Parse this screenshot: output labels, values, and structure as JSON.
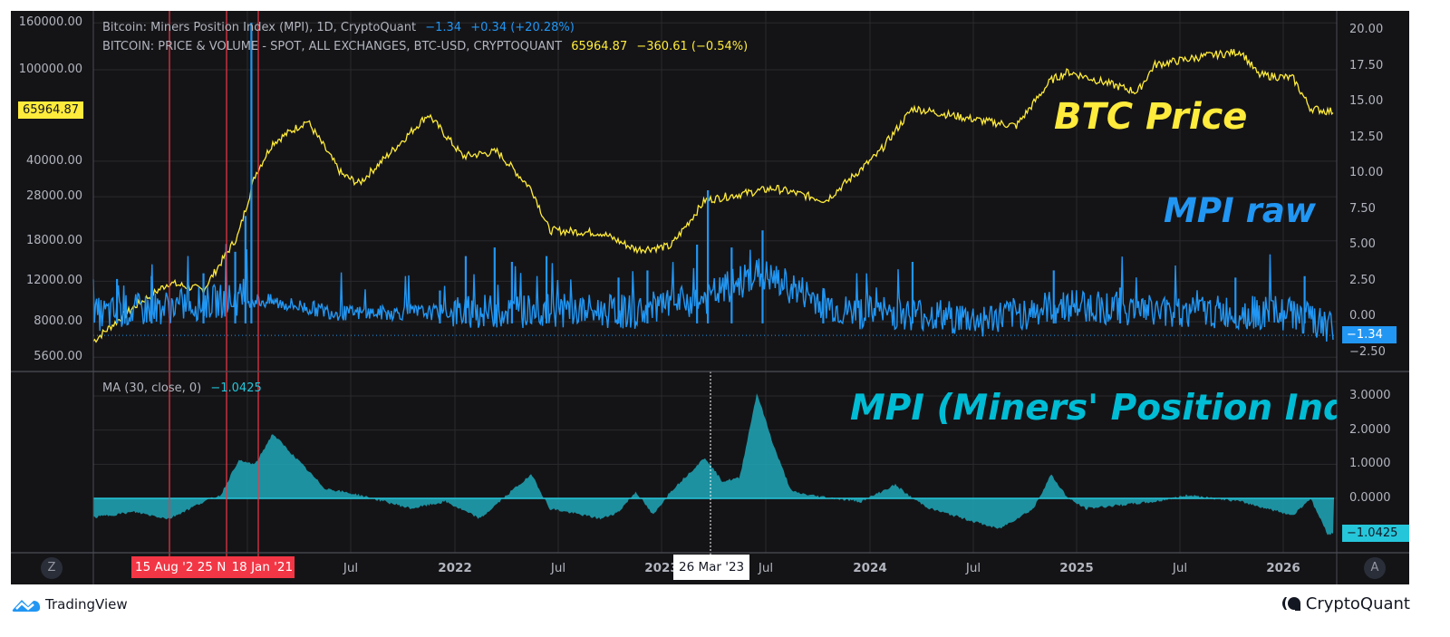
{
  "legend": {
    "mpi": {
      "title": "Bitcoin: Miners Position Index (MPI), 1D, CryptoQuant",
      "value": "−1.34",
      "change": "+0.34 (+20.28%)",
      "color": "#2196f3"
    },
    "price": {
      "title": "BITCOIN: PRICE & VOLUME - SPOT, ALL EXCHANGES, BTC-USD, CRYPTOQUANT",
      "value": "65964.87",
      "change": "−360.61 (−0.54%)",
      "color": "#ffeb3b"
    },
    "ma": {
      "title": "MA (30, close, 0)",
      "value": "−1.0425",
      "color": "#26c6da"
    }
  },
  "annotations": {
    "btc_price": "BTC Price",
    "mpi_raw": "MPI raw",
    "mpi_full": "MPI (Miners' Position Index, ..."
  },
  "left_axis": {
    "ticks": [
      "160000.00",
      "100000.00",
      "40000.00",
      "28000.00",
      "18000.00",
      "12000.00",
      "8000.00",
      "5600.00"
    ],
    "current_price_tag": "65964.87"
  },
  "right_axis_top": {
    "ticks": [
      "20.00",
      "17.50",
      "15.00",
      "12.50",
      "10.00",
      "7.50",
      "5.00",
      "2.50",
      "0.00",
      "−2.50"
    ],
    "current_tag": "−1.34"
  },
  "right_axis_bottom": {
    "ticks": [
      "3.0000",
      "2.0000",
      "1.0000",
      "0.0000"
    ],
    "current_tag": "−1.0425"
  },
  "time_axis": {
    "labels": [
      {
        "text": "Jul",
        "bold": false
      },
      {
        "text": "2022",
        "bold": true
      },
      {
        "text": "Jul",
        "bold": false
      },
      {
        "text": "2023",
        "bold": true
      },
      {
        "text": "Jul",
        "bold": false
      },
      {
        "text": "2024",
        "bold": true
      },
      {
        "text": "Jul",
        "bold": false
      },
      {
        "text": "2025",
        "bold": true
      },
      {
        "text": "Jul",
        "bold": false
      },
      {
        "text": "2026",
        "bold": true
      }
    ],
    "markers": {
      "red": [
        "15 Aug '2",
        "25 N",
        "18 Jan '21"
      ],
      "crosshair": "26 Mar '23"
    }
  },
  "buttons": {
    "zoom_reset": "Z",
    "auto_scale": "A"
  },
  "branding": {
    "left": "TradingView",
    "right": "CryptoQuant"
  },
  "colors": {
    "background": "#141417",
    "grid": "#2a2a2e",
    "price_line": "#ffeb3b",
    "mpi_line": "#2196f3",
    "ma_fill": "#1fa7b8",
    "marker_red": "#f23645"
  },
  "chart_data": [
    {
      "type": "line",
      "title": "Bitcoin: Price & Volume - Spot, All Exchanges, BTC-USD (log scale)",
      "ylabel": "BTC-USD",
      "yscale": "log",
      "ylim": [
        5000,
        170000
      ],
      "x": [
        "2020-03",
        "2020-06",
        "2020-08",
        "2020-10",
        "2020-12",
        "2021-01",
        "2021-02",
        "2021-04",
        "2021-06",
        "2021-07",
        "2021-09",
        "2021-11",
        "2022-01",
        "2022-03",
        "2022-05",
        "2022-06",
        "2022-09",
        "2022-11",
        "2023-01",
        "2023-03",
        "2023-07",
        "2023-10",
        "2024-01",
        "2024-03",
        "2024-07",
        "2024-09",
        "2024-11",
        "2024-12",
        "2025-04",
        "2025-05",
        "2025-08",
        "2025-10",
        "2025-11",
        "2026-01",
        "2026-02",
        "2026-03"
      ],
      "values": [
        6000,
        9300,
        11800,
        11000,
        19000,
        35000,
        48000,
        60000,
        35000,
        32000,
        45000,
        64000,
        42000,
        44000,
        30000,
        20000,
        19500,
        16500,
        17000,
        27000,
        30500,
        27000,
        43000,
        68000,
        60000,
        57000,
        90000,
        98000,
        80000,
        105000,
        115000,
        120000,
        95000,
        92000,
        68000,
        66000
      ],
      "last_value": 65964.87,
      "last_change": -360.61,
      "last_change_pct": -0.54
    },
    {
      "type": "line",
      "title": "Bitcoin: Miners Position Index (MPI), 1D, CryptoQuant",
      "ylabel": "MPI",
      "ylim": [
        -3.2,
        21
      ],
      "x": [
        "2020-03",
        "2020-08",
        "2020-11",
        "2021-01-03",
        "2021-01-10",
        "2021-02",
        "2021-06",
        "2021-12",
        "2022-01",
        "2022-03",
        "2022-06",
        "2022-11",
        "2023-03-20",
        "2023-06",
        "2023-07",
        "2023-10",
        "2024-03",
        "2024-07",
        "2024-11",
        "2024-12",
        "2025-06",
        "2025-10",
        "2026-01",
        "2026-03"
      ],
      "values": [
        0.0,
        2.8,
        3.5,
        4.5,
        20.5,
        1.2,
        -0.3,
        -0.2,
        1.0,
        4.8,
        4.1,
        2.0,
        8.8,
        4.5,
        5.0,
        0.5,
        1.0,
        -0.5,
        3.2,
        1.8,
        2.8,
        2.0,
        2.5,
        -1.34
      ],
      "last_value": -1.34,
      "last_change": 0.34,
      "last_change_pct": 20.28
    },
    {
      "type": "area",
      "title": "MA (30, close, 0) of MPI",
      "ylabel": "MA",
      "ylim": [
        -1.6,
        3.4
      ],
      "x": [
        "2020-03",
        "2020-06",
        "2020-08",
        "2020-10",
        "2020-11",
        "2020-12",
        "2021-01",
        "2021-02",
        "2021-05",
        "2021-07",
        "2021-10",
        "2021-12",
        "2022-02",
        "2022-04",
        "2022-05",
        "2022-06",
        "2022-09",
        "2022-10",
        "2022-11",
        "2022-12",
        "2023-01",
        "2023-03",
        "2023-04",
        "2023-05",
        "2023-06",
        "2023-07",
        "2023-08",
        "2023-09",
        "2023-12",
        "2024-02",
        "2024-03",
        "2024-04",
        "2024-08",
        "2024-10",
        "2024-11",
        "2024-12",
        "2025-01",
        "2025-05",
        "2025-07",
        "2025-10",
        "2026-01",
        "2026-02",
        "2026-03"
      ],
      "values": [
        -0.6,
        -0.4,
        -0.6,
        -0.1,
        0.1,
        1.1,
        1.0,
        1.9,
        0.3,
        0.1,
        -0.3,
        -0.1,
        -0.6,
        0.3,
        0.7,
        -0.3,
        -0.6,
        -0.4,
        0.2,
        -0.5,
        0.2,
        1.2,
        0.5,
        0.6,
        3.1,
        1.5,
        0.2,
        0.1,
        -0.1,
        0.4,
        0.0,
        -0.3,
        -0.9,
        -0.3,
        0.7,
        0.0,
        -0.3,
        -0.1,
        0.1,
        -0.1,
        -0.5,
        0.0,
        -1.04
      ],
      "last_value": -1.0425
    }
  ]
}
